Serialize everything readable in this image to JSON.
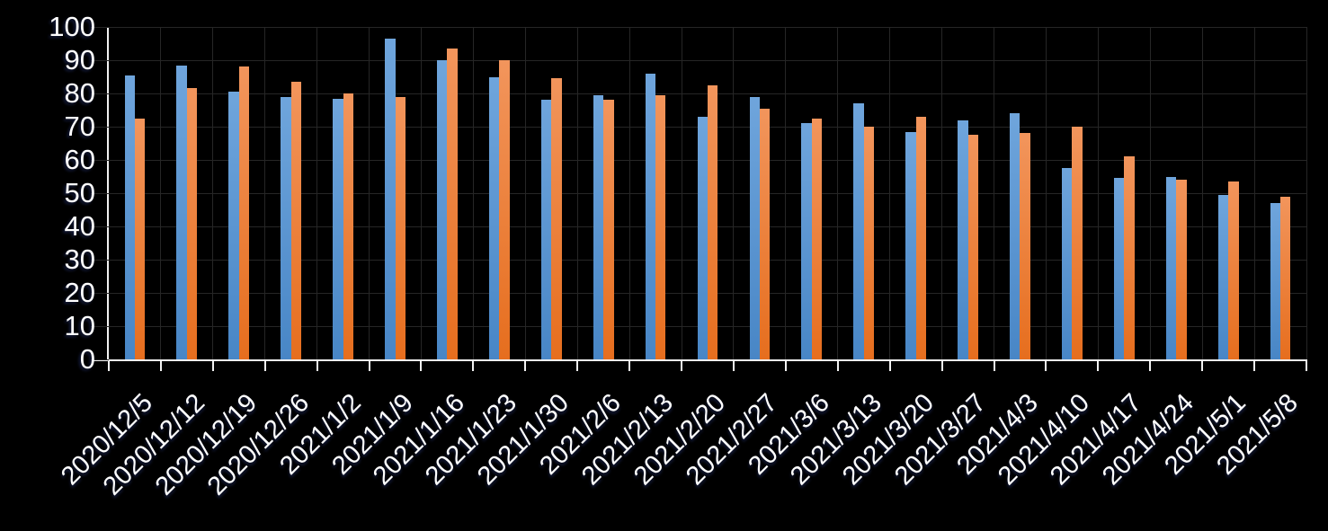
{
  "chart_data": {
    "type": "bar",
    "title": "",
    "xlabel": "",
    "ylabel": "",
    "categories": [
      "2020/12/5",
      "2020/12/12",
      "2020/12/19",
      "2020/12/26",
      "2021/1/2",
      "2021/1/9",
      "2021/1/16",
      "2021/1/23",
      "2021/1/30",
      "2021/2/6",
      "2021/2/13",
      "2021/2/20",
      "2021/2/27",
      "2021/3/6",
      "2021/3/13",
      "2021/3/20",
      "2021/3/27",
      "2021/4/3",
      "2021/4/10",
      "2021/4/17",
      "2021/4/24",
      "2021/5/1",
      "2021/5/8"
    ],
    "series": [
      {
        "name": "series-blue",
        "color": "#5B9BD5",
        "color_top": "#6FA5DC",
        "color_bottom": "#4886C6",
        "values": [
          85.5,
          88.5,
          80.5,
          79,
          78.5,
          96.5,
          90,
          85,
          78,
          79.5,
          86,
          73,
          79,
          71,
          77,
          68.5,
          72,
          74,
          57.5,
          54.5,
          55,
          49.5,
          47
        ]
      },
      {
        "name": "series-orange",
        "color": "#ED7D31",
        "color_top": "#F2955C",
        "color_bottom": "#E66E1E",
        "values": [
          72.5,
          81.5,
          88,
          83.5,
          80,
          79,
          93.5,
          90,
          84.5,
          78,
          79.5,
          82.5,
          75.5,
          72.5,
          70,
          73,
          67.5,
          68,
          70,
          61,
          54,
          53.5,
          49
        ]
      }
    ],
    "ylim": [
      0,
      100
    ],
    "ytick_step": 10,
    "ytick_labels": [
      "0",
      "10",
      "20",
      "30",
      "40",
      "50",
      "60",
      "70",
      "80",
      "90",
      "100"
    ],
    "grid": true,
    "legend_position": "none",
    "colors": {
      "background": "#000000",
      "gridline": "#262626",
      "axis": "#F2F2F2",
      "text": "#FFFFFF"
    }
  }
}
